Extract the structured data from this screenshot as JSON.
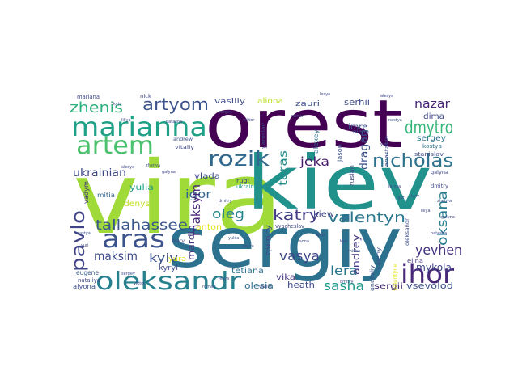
{
  "colors": {
    "background": "#ffffff",
    "palette_note": "viridis"
  },
  "words": [
    {
      "text": "vira",
      "color": "#a0da39"
    },
    {
      "text": "kiev",
      "color": "#21918c"
    },
    {
      "text": "sergiy",
      "color": "#2c728e"
    },
    {
      "text": "orest",
      "color": "#440154"
    },
    {
      "text": "marianna",
      "color": "#1fa187"
    },
    {
      "text": "artem",
      "color": "#4ac16d"
    },
    {
      "text": "aras",
      "color": "#3b528b"
    },
    {
      "text": "oleksandr",
      "color": "#27808e"
    },
    {
      "text": "pavlo",
      "color": "#414487"
    },
    {
      "text": "ihor",
      "color": "#482878"
    },
    {
      "text": "rozik",
      "color": "#31688e"
    },
    {
      "text": "dmytro",
      "color": "#35b779"
    },
    {
      "text": "nicholas",
      "color": "#2c728e"
    },
    {
      "text": "artyom",
      "color": "#3b528b"
    },
    {
      "text": "zhenis",
      "color": "#2db27d"
    },
    {
      "text": "katry",
      "color": "#433e85"
    },
    {
      "text": "valentyn",
      "color": "#2a788e"
    },
    {
      "text": "oksana",
      "color": "#287c8e"
    },
    {
      "text": "yevhen",
      "color": "#46327e"
    },
    {
      "text": "tallahassee",
      "color": "#39568c"
    },
    {
      "text": "maksym",
      "color": "#482475"
    },
    {
      "text": "oleg",
      "color": "#25848e"
    },
    {
      "text": "vasya",
      "color": "#3e4989"
    },
    {
      "text": "sasha",
      "color": "#1f9a8a"
    },
    {
      "text": "lera",
      "color": "#2a788e"
    },
    {
      "text": "andrey",
      "color": "#443a83"
    },
    {
      "text": "nazar",
      "color": "#482576"
    },
    {
      "text": "jeka",
      "color": "#481b6d"
    },
    {
      "text": "taras",
      "color": "#228c8d"
    },
    {
      "text": "dragan",
      "color": "#3b528b"
    },
    {
      "text": "maksim",
      "color": "#3e4a89"
    },
    {
      "text": "kyiv",
      "color": "#3b528b"
    },
    {
      "text": "igor",
      "color": "#32658e"
    },
    {
      "text": "ukrainian",
      "color": "#3f4788"
    },
    {
      "text": "mardin",
      "color": "#443983"
    },
    {
      "text": "mykola",
      "color": "#404588"
    },
    {
      "text": "vsevolod",
      "color": "#3b528b"
    },
    {
      "text": "heath",
      "color": "#3e4989"
    },
    {
      "text": "olesia",
      "color": "#2e6f8e"
    },
    {
      "text": "sergii",
      "color": "#472c7a"
    },
    {
      "text": "kiew",
      "color": "#3f4889"
    },
    {
      "text": "dima",
      "color": "#3f4788"
    },
    {
      "text": "sergey",
      "color": "#2b758e"
    },
    {
      "text": "serhii",
      "color": "#3e4c8a"
    },
    {
      "text": "imre",
      "color": "#3d4e8a"
    },
    {
      "text": "vika",
      "color": "#463480"
    },
    {
      "text": "denys",
      "color": "#c0df25"
    },
    {
      "text": "anton",
      "color": "#e5e419"
    },
    {
      "text": "vlada",
      "color": "#3d4d8a"
    },
    {
      "text": "yulia",
      "color": "#1e9c89"
    },
    {
      "text": "tetiana",
      "color": "#2c718e"
    },
    {
      "text": "quincy",
      "color": "#3f4788"
    },
    {
      "text": "aliona",
      "color": "#bddf26"
    },
    {
      "text": "vasiliy",
      "color": "#3d4d8a"
    },
    {
      "text": "zauri",
      "color": "#3d4e8a"
    },
    {
      "text": "vadym",
      "color": "#472f7d"
    },
    {
      "text": "mitia",
      "color": "#31668e"
    },
    {
      "text": "eugene",
      "color": "#37598c"
    },
    {
      "text": "nataliya",
      "color": "#3f4788"
    },
    {
      "text": "alyona",
      "color": "#3b528b"
    },
    {
      "text": "yura",
      "color": "#dde318"
    },
    {
      "text": "kyryl",
      "color": "#3e4a89"
    },
    {
      "text": "nikita",
      "color": "#440154"
    },
    {
      "text": "elina",
      "color": "#46337f"
    },
    {
      "text": "stanislav",
      "color": "#3e4c8a"
    },
    {
      "text": "kostya",
      "color": "#2d708e"
    },
    {
      "text": "jennifer",
      "color": "#3e4c8a"
    },
    {
      "text": "roger",
      "color": "#2b748e"
    },
    {
      "text": "olena",
      "color": "#3b528b"
    },
    {
      "text": "alexey",
      "color": "#2e6e8e"
    },
    {
      "text": "anastasia",
      "color": "#3f4889"
    },
    {
      "text": "ukraine",
      "color": "#1f9e89"
    },
    {
      "text": "valeriy",
      "color": "#3d4e8a"
    },
    {
      "text": "anatoliy",
      "color": "#3b528b"
    },
    {
      "text": "valentyne",
      "color": "#e5e419"
    },
    {
      "text": "oleksandr",
      "color": "#3e4a89"
    },
    {
      "text": "vyacheslav",
      "color": "#3f4788"
    },
    {
      "text": "ruslan",
      "color": "#3d4d8a"
    },
    {
      "text": "ukrainian",
      "color": "#3f4788"
    },
    {
      "text": "rina",
      "color": "#440154"
    },
    {
      "text": "mariana",
      "color": "#3f4788"
    },
    {
      "text": "nick",
      "color": "#3f4788"
    },
    {
      "text": "andrew",
      "color": "#3b528b"
    },
    {
      "text": "vitaliy",
      "color": "#3f4889"
    },
    {
      "text": "valentin",
      "color": "#3d4e8a"
    },
    {
      "text": "yaroslav",
      "color": "#3d4e8a"
    },
    {
      "text": "mary",
      "color": "#3f4788"
    },
    {
      "text": "jason",
      "color": "#3b528b"
    },
    {
      "text": "rugi",
      "color": "#3f4788"
    },
    {
      "text": "kyiv",
      "color": "#3f4889"
    },
    {
      "text": "liliya",
      "color": "#3f4788"
    },
    {
      "text": "natasha",
      "color": "#3f4788"
    },
    {
      "text": "sergey",
      "color": "#3d4d8a"
    },
    {
      "text": "viktor",
      "color": "#3f4788"
    },
    {
      "text": "roman",
      "color": "#3d4e8a"
    },
    {
      "text": "lesya",
      "color": "#3f4788"
    },
    {
      "text": "alesya",
      "color": "#3f4788"
    },
    {
      "text": "nastya",
      "color": "#3b528b"
    },
    {
      "text": "yuri",
      "color": "#3f4889"
    },
    {
      "text": "zhenya",
      "color": "#3d4d8a"
    },
    {
      "text": "galyna",
      "color": "#3f4788"
    },
    {
      "text": "dmitry",
      "color": "#3f4788"
    },
    {
      "text": "yuliia",
      "color": "#3b528b"
    },
    {
      "text": "savra",
      "color": "#3f4788"
    },
    {
      "text": "vadim",
      "color": "#3d4e8a"
    },
    {
      "text": "sona",
      "color": "#3f4788"
    },
    {
      "text": "lavia",
      "color": "#3f4788"
    },
    {
      "text": "kari",
      "color": "#3f4788"
    },
    {
      "text": "misha",
      "color": "#3b528b"
    },
    {
      "text": "larysa",
      "color": "#3f4889"
    },
    {
      "text": "igor",
      "color": "#3f4788"
    }
  ]
}
